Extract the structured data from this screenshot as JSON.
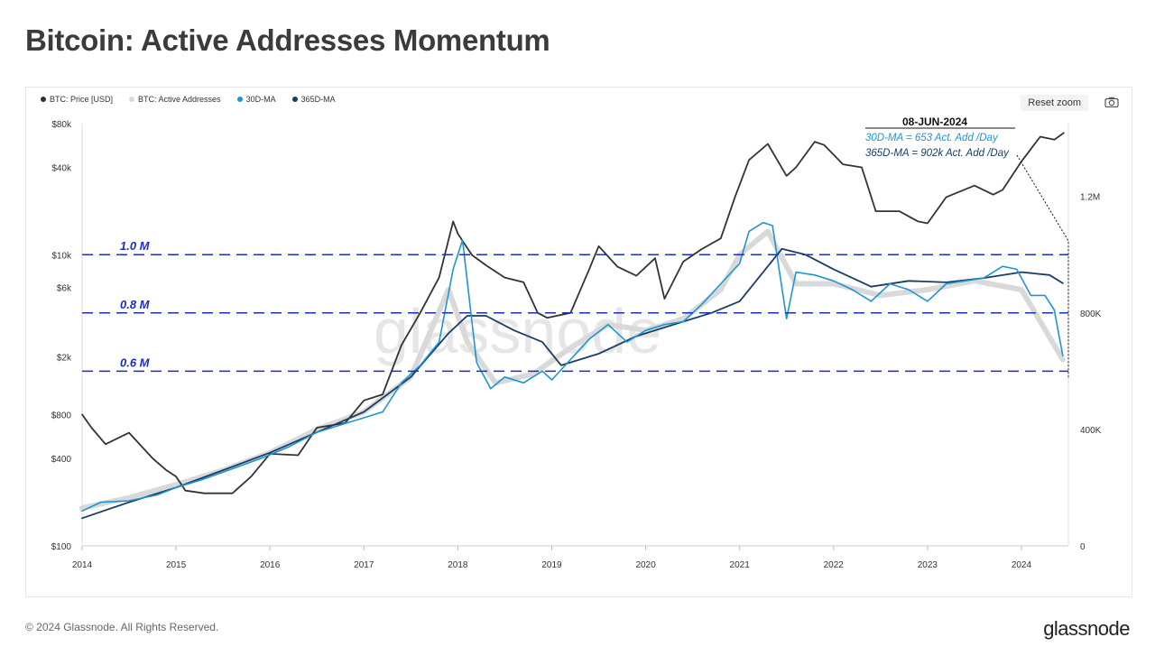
{
  "page": {
    "title": "Bitcoin: Active Addresses Momentum",
    "copyright": "© 2024 Glassnode. All Rights Reserved.",
    "logo": "glassnode",
    "reset_zoom": "Reset zoom",
    "watermark": "glassnode",
    "camera_icon": "camera-icon"
  },
  "legend": [
    {
      "name": "BTC: Price [USD]",
      "color": "#333333"
    },
    {
      "name": "BTC: Active Addresses",
      "color": "#d9d9d9"
    },
    {
      "name": "30D-MA",
      "color": "#1e95d2"
    },
    {
      "name": "365D-MA",
      "color": "#1a3d66"
    }
  ],
  "annotation": {
    "date": "08-JUN-2024",
    "line1": "30D-MA = 653 Act. Add /Day",
    "line2": "365D-MA = 902k  Act. Add /Day"
  },
  "levels": [
    {
      "label": "1.0 M",
      "value": 1000000
    },
    {
      "label": "0.8 M",
      "value": 800000
    },
    {
      "label": "0.6 M",
      "value": 600000
    }
  ],
  "chart_data": {
    "type": "line",
    "title": "Bitcoin: Active Addresses Momentum",
    "x_ticks": [
      "2014",
      "2015",
      "2016",
      "2017",
      "2018",
      "2019",
      "2020",
      "2021",
      "2022",
      "2023",
      "2024"
    ],
    "x_range": [
      2014.0,
      2024.5
    ],
    "y_left_scale": "log",
    "y_left_range": [
      100,
      80000
    ],
    "y_left_ticks": [
      {
        "label": "$80k",
        "value": 80000
      },
      {
        "label": "$40k",
        "value": 40000
      },
      {
        "label": "$10k",
        "value": 10000
      },
      {
        "label": "$6k",
        "value": 6000
      },
      {
        "label": "$2k",
        "value": 2000
      },
      {
        "label": "$800",
        "value": 800
      },
      {
        "label": "$400",
        "value": 400
      },
      {
        "label": "$100",
        "value": 100
      }
    ],
    "y_right_scale": "linear",
    "y_right_range": [
      0,
      1450000
    ],
    "y_right_ticks": [
      {
        "label": "1.2M",
        "value": 1200000
      },
      {
        "label": "800K",
        "value": 800000
      },
      {
        "label": "400K",
        "value": 400000
      },
      {
        "label": "0",
        "value": 0
      }
    ],
    "legend_position": "top-left",
    "series": [
      {
        "name": "BTC: Price [USD]",
        "axis": "left",
        "color": "#333333",
        "x": [
          2014.0,
          2014.1,
          2014.25,
          2014.5,
          2014.75,
          2014.9,
          2015.0,
          2015.1,
          2015.3,
          2015.6,
          2015.8,
          2016.0,
          2016.3,
          2016.5,
          2016.8,
          2017.0,
          2017.2,
          2017.4,
          2017.6,
          2017.8,
          2017.95,
          2018.0,
          2018.15,
          2018.3,
          2018.5,
          2018.7,
          2018.85,
          2018.95,
          2019.2,
          2019.4,
          2019.5,
          2019.7,
          2019.9,
          2020.1,
          2020.2,
          2020.4,
          2020.6,
          2020.8,
          2020.95,
          2021.1,
          2021.3,
          2021.5,
          2021.6,
          2021.8,
          2021.9,
          2022.1,
          2022.3,
          2022.45,
          2022.7,
          2022.9,
          2023.0,
          2023.2,
          2023.5,
          2023.7,
          2023.8,
          2024.0,
          2024.2,
          2024.35,
          2024.45
        ],
        "y": [
          800,
          650,
          500,
          600,
          400,
          330,
          300,
          240,
          230,
          230,
          300,
          430,
          420,
          650,
          700,
          1000,
          1100,
          2400,
          4000,
          7000,
          17000,
          14000,
          10000,
          8500,
          7000,
          6500,
          4000,
          3700,
          4000,
          8000,
          11500,
          8300,
          7200,
          9500,
          5000,
          9000,
          11000,
          13000,
          25000,
          45000,
          58000,
          35000,
          40000,
          60000,
          57000,
          42000,
          40000,
          20000,
          20000,
          17000,
          16500,
          25000,
          30000,
          26000,
          28000,
          44000,
          65000,
          62000,
          69000
        ]
      },
      {
        "name": "30D-MA",
        "axis": "right",
        "color": "#1e95d2",
        "x": [
          2014.0,
          2014.2,
          2014.5,
          2014.8,
          2015.0,
          2015.3,
          2015.6,
          2015.9,
          2016.2,
          2016.5,
          2016.8,
          2017.0,
          2017.2,
          2017.4,
          2017.6,
          2017.8,
          2017.95,
          2018.05,
          2018.2,
          2018.35,
          2018.5,
          2018.7,
          2018.9,
          2019.0,
          2019.2,
          2019.4,
          2019.6,
          2019.8,
          2020.0,
          2020.2,
          2020.4,
          2020.6,
          2020.8,
          2021.0,
          2021.1,
          2021.25,
          2021.35,
          2021.5,
          2021.6,
          2021.8,
          2022.0,
          2022.2,
          2022.4,
          2022.6,
          2022.8,
          2023.0,
          2023.2,
          2023.4,
          2023.6,
          2023.8,
          2023.95,
          2024.1,
          2024.25,
          2024.35,
          2024.44
        ],
        "y": [
          120000,
          150000,
          155000,
          175000,
          200000,
          230000,
          265000,
          300000,
          340000,
          390000,
          420000,
          440000,
          460000,
          560000,
          620000,
          700000,
          950000,
          1050000,
          630000,
          540000,
          580000,
          560000,
          600000,
          570000,
          640000,
          710000,
          760000,
          700000,
          740000,
          760000,
          770000,
          830000,
          900000,
          970000,
          1080000,
          1110000,
          1100000,
          780000,
          940000,
          930000,
          910000,
          880000,
          840000,
          900000,
          880000,
          840000,
          900000,
          910000,
          920000,
          960000,
          950000,
          860000,
          860000,
          810000,
          653000
        ]
      },
      {
        "name": "365D-MA",
        "axis": "right",
        "color": "#1a3d66",
        "x": [
          2014.0,
          2014.5,
          2015.0,
          2015.5,
          2016.0,
          2016.5,
          2017.0,
          2017.5,
          2017.9,
          2018.1,
          2018.3,
          2018.6,
          2018.9,
          2019.1,
          2019.5,
          2019.9,
          2020.3,
          2020.7,
          2021.0,
          2021.3,
          2021.45,
          2021.7,
          2022.0,
          2022.4,
          2022.8,
          2023.2,
          2023.6,
          2024.0,
          2024.3,
          2024.44
        ],
        "y": [
          95000,
          150000,
          200000,
          260000,
          320000,
          390000,
          460000,
          580000,
          730000,
          790000,
          790000,
          740000,
          700000,
          620000,
          660000,
          720000,
          760000,
          800000,
          840000,
          960000,
          1020000,
          1000000,
          950000,
          890000,
          910000,
          905000,
          920000,
          940000,
          930000,
          902000
        ]
      },
      {
        "name": "BTC: Active Addresses",
        "axis": "right",
        "color": "#d9d9d9",
        "x": [
          2014.0,
          2014.5,
          2015.0,
          2015.5,
          2016.0,
          2016.5,
          2017.0,
          2017.5,
          2017.9,
          2018.1,
          2018.4,
          2018.8,
          2019.2,
          2019.6,
          2020.0,
          2020.4,
          2020.8,
          2021.0,
          2021.3,
          2021.6,
          2022.0,
          2022.5,
          2023.0,
          2023.5,
          2024.0,
          2024.44
        ],
        "y": [
          130000,
          165000,
          210000,
          260000,
          320000,
          400000,
          460000,
          580000,
          880000,
          700000,
          560000,
          590000,
          680000,
          760000,
          740000,
          780000,
          880000,
          1000000,
          1080000,
          900000,
          900000,
          860000,
          880000,
          910000,
          880000,
          640000
        ]
      }
    ]
  }
}
